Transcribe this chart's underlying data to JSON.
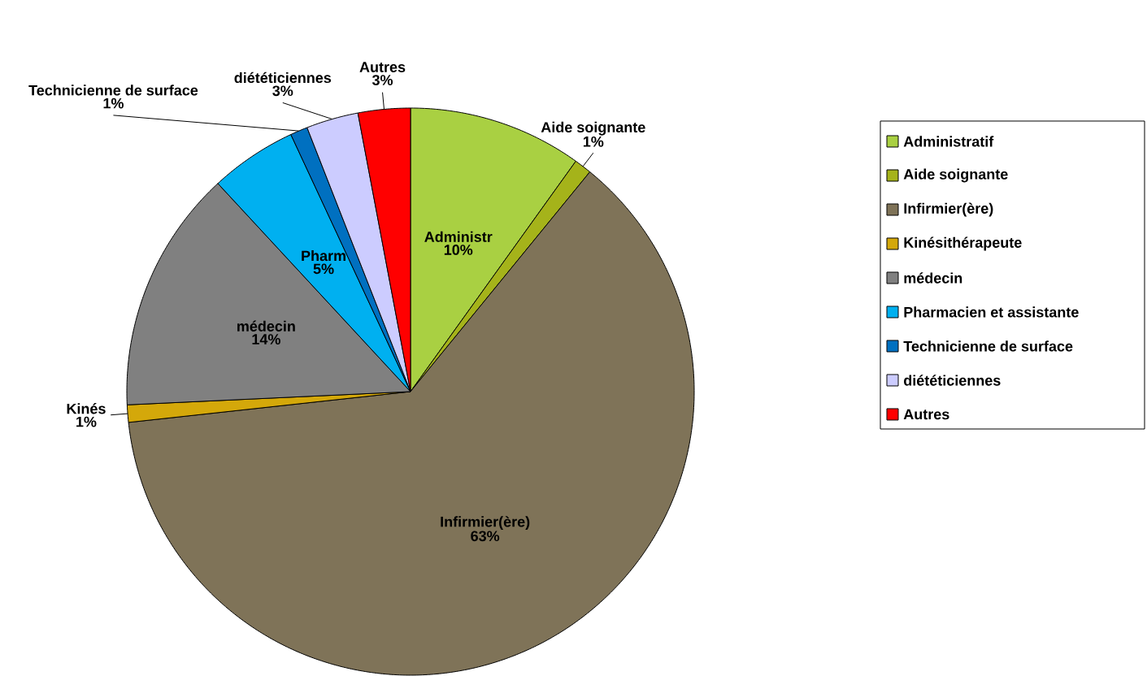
{
  "chart_data": {
    "type": "pie",
    "categories": [
      "Administratif",
      "Aide soignante",
      "Infirmier(ère)",
      "Kinésithérapeute",
      "médecin",
      "Pharmacien et assistante",
      "Technicienne de surface",
      "diététiciennes",
      "Autres"
    ],
    "values": [
      10,
      1,
      63,
      1,
      14,
      5,
      1,
      3,
      3
    ],
    "value_labels": [
      "10%",
      "1%",
      "63%",
      "1%",
      "14%",
      "5%",
      "1%",
      "3%",
      "3%"
    ],
    "annotations": [
      "Administr",
      "Aide soignante",
      "Infirmier(ère)",
      "Kinés",
      "médecin",
      "Pharm",
      "Technicienne de surface",
      "diététiciennes",
      "Autres"
    ],
    "colors": [
      "#a9d042",
      "#a5b31a",
      "#7f7358",
      "#d4a80a",
      "#808080",
      "#00b0f0",
      "#0070c0",
      "#ccccff",
      "#ff0000"
    ],
    "legend": "right"
  }
}
